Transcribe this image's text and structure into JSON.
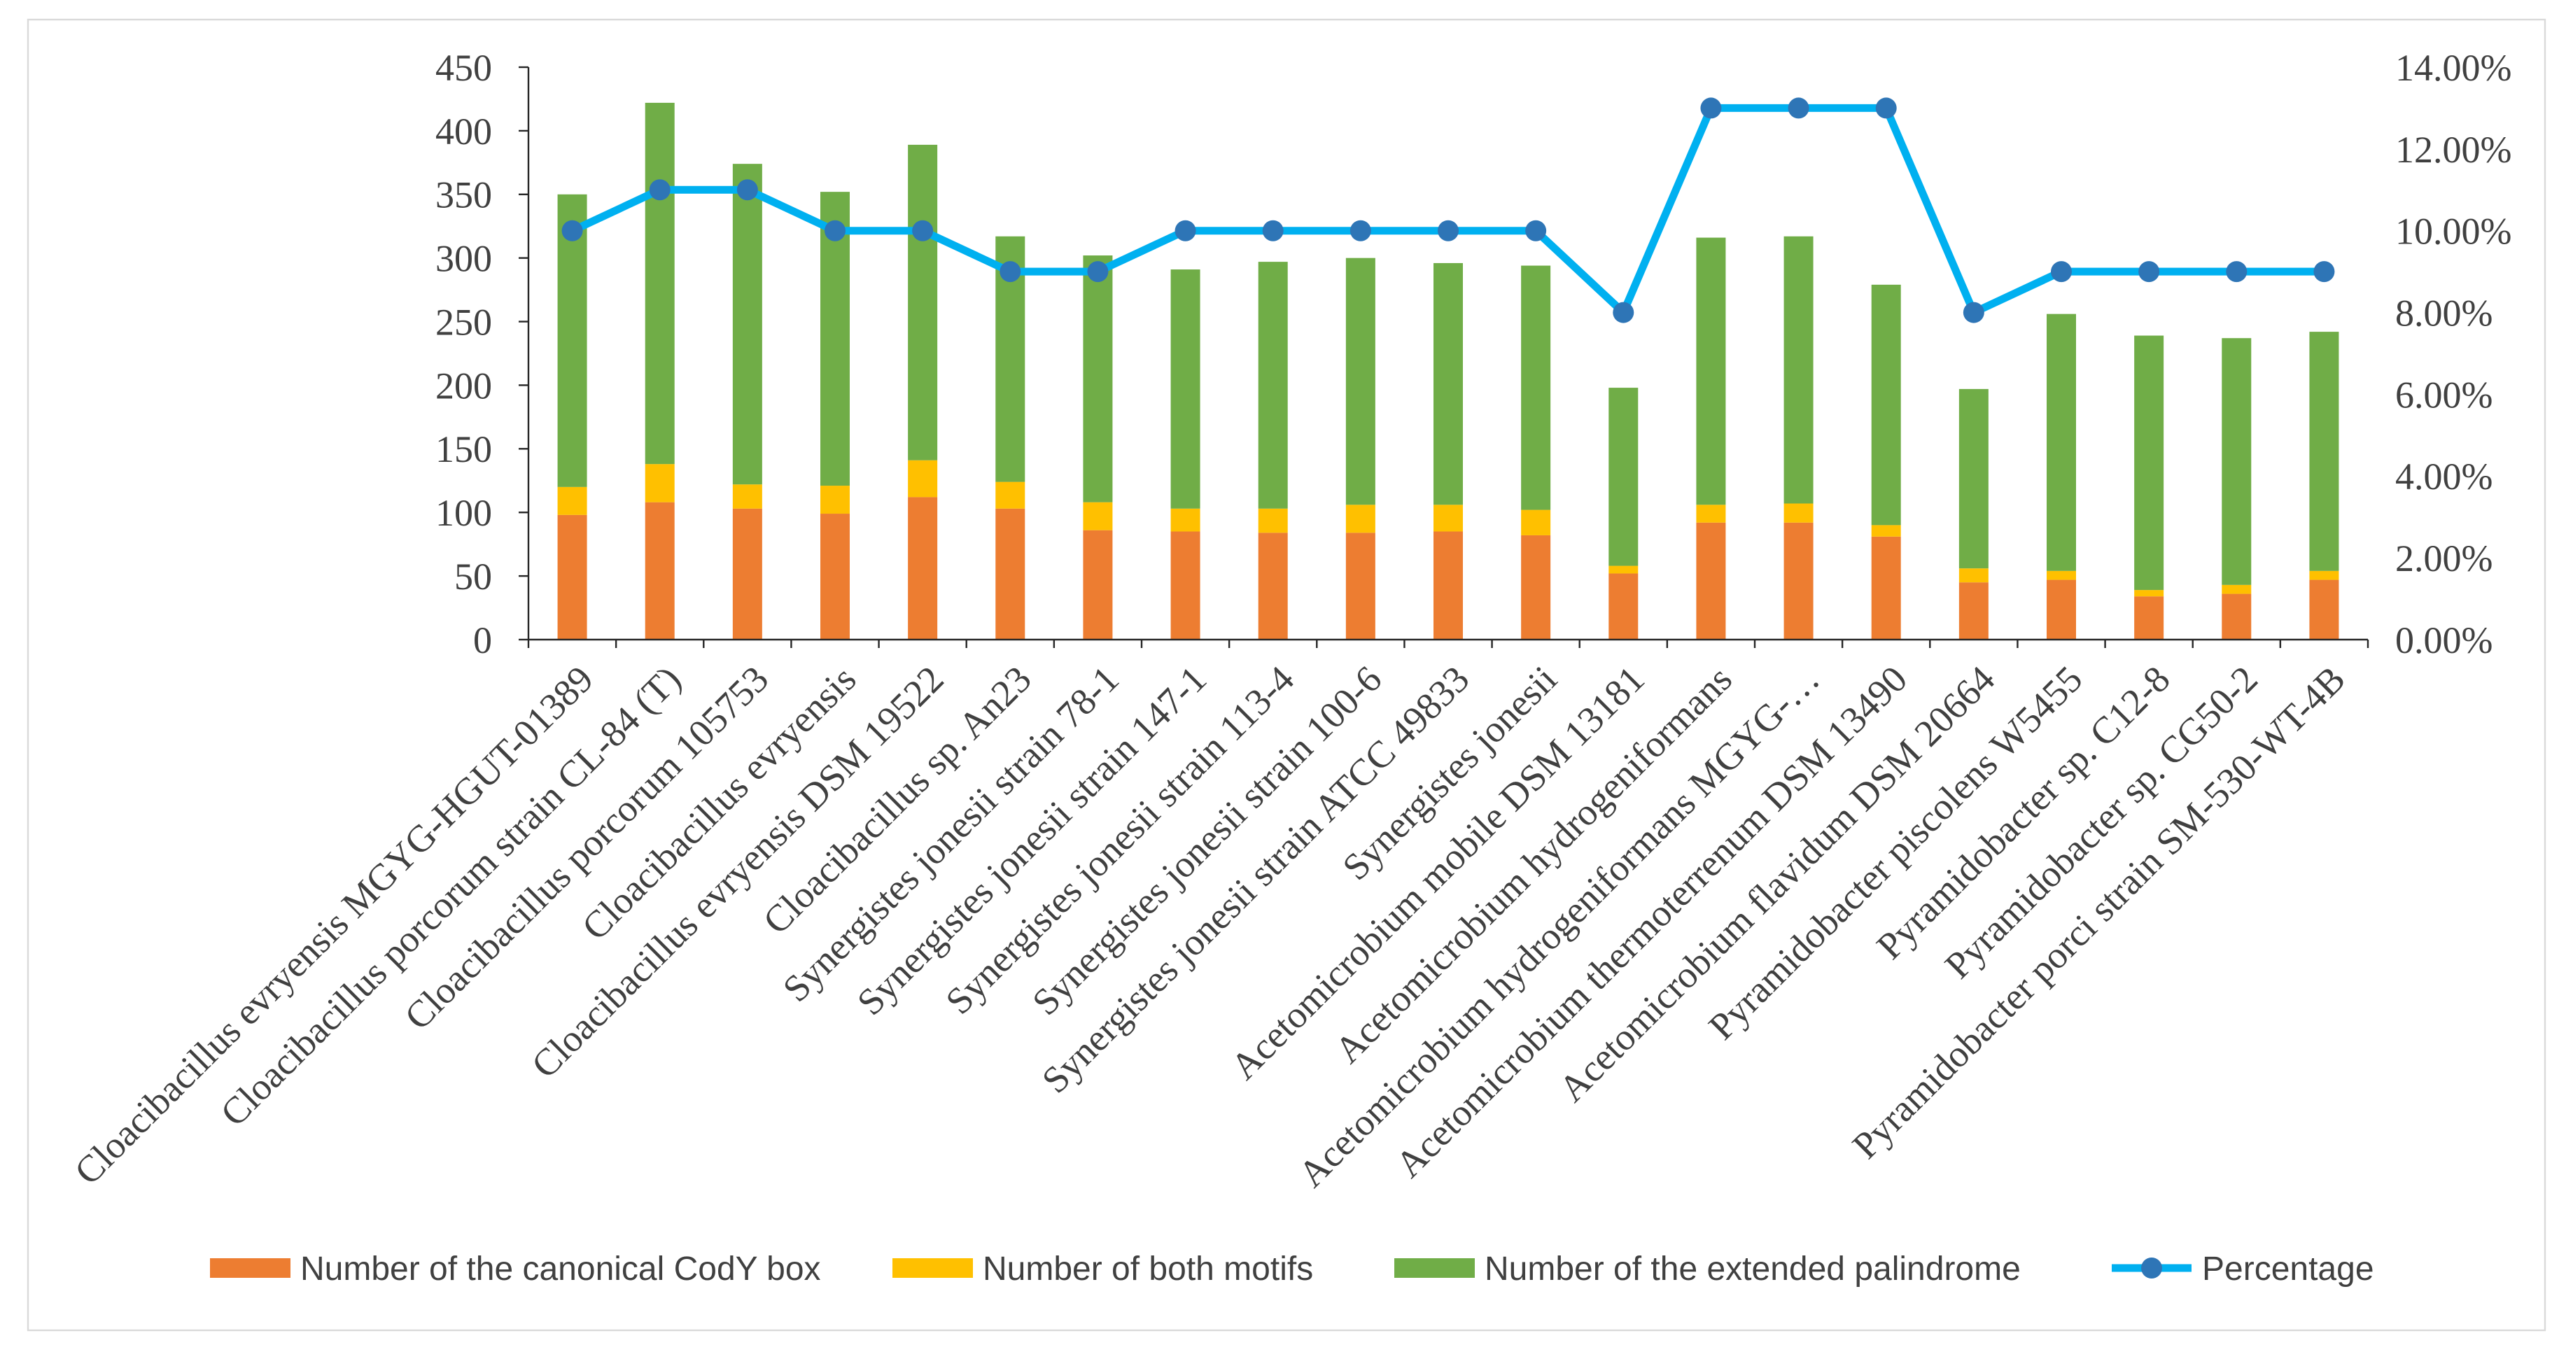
{
  "chart_data": {
    "type": "bar",
    "stacked": true,
    "categories": [
      "Cloacibacillus evryensis MGYG-HGUT-01389",
      "Cloacibacillus porcorum strain CL-84 (T)",
      "Cloacibacillus porcorum 105753",
      "Cloacibacillus evryensis",
      "Cloacibacillus evryensis DSM 19522",
      "Cloacibacillus sp. An23",
      "Synergistes jonesii strain 78-1",
      "Synergistes jonesii strain 147-1",
      "Synergistes jonesii strain 113-4",
      "Synergistes jonesii strain 100-6",
      "Synergistes jonesii strain ATCC 49833",
      "Synergistes jonesii",
      "Acetomicrobium mobile DSM 13181",
      "Acetomicrobium hydrogeniformans",
      "Acetomicrobium hydrogeniformans MGYG-…",
      "Acetomicrobium thermoterrenum DSM 13490",
      "Acetomicrobium flavidum DSM 20664",
      "Pyramidobacter piscolens W5455",
      "Pyramidobacter sp. C12-8",
      "Pyramidobacter sp. CG50-2",
      "Pyramidobacter porci strain SM-530-WT-4B"
    ],
    "series": [
      {
        "name": "Number of the canonical CodY box",
        "type": "bar",
        "axis": "left",
        "color": "#ED7D31",
        "values": [
          98,
          108,
          103,
          99,
          112,
          103,
          86,
          85,
          84,
          84,
          85,
          82,
          52,
          92,
          92,
          81,
          45,
          47,
          34,
          36,
          47
        ]
      },
      {
        "name": "Number of both motifs",
        "type": "bar",
        "axis": "left",
        "color": "#FFC000",
        "values": [
          22,
          30,
          19,
          22,
          29,
          21,
          22,
          18,
          19,
          22,
          21,
          20,
          6,
          14,
          15,
          9,
          11,
          7,
          5,
          7,
          7
        ]
      },
      {
        "name": "Number of the extended palindrome",
        "type": "bar",
        "axis": "left",
        "color": "#70AD47",
        "values": [
          230,
          284,
          252,
          231,
          248,
          193,
          194,
          188,
          194,
          194,
          190,
          192,
          140,
          210,
          210,
          189,
          141,
          202,
          200,
          194,
          188
        ]
      },
      {
        "name": "Percentage",
        "type": "line",
        "axis": "right",
        "color": "#00B0F0",
        "marker_color": "#2E75B6",
        "values": [
          10,
          11,
          11,
          10,
          10,
          9,
          9,
          10,
          10,
          10,
          10,
          10,
          8,
          13,
          13,
          13,
          8,
          9,
          9,
          9,
          9
        ]
      }
    ],
    "ylim": [
      0,
      450
    ],
    "yticks": [
      "0",
      "50",
      "100",
      "150",
      "200",
      "250",
      "300",
      "350",
      "400",
      "450"
    ],
    "y2lim": [
      0,
      14
    ],
    "y2ticks": [
      "0.00%",
      "2.00%",
      "4.00%",
      "6.00%",
      "8.00%",
      "10.00%",
      "12.00%",
      "14.00%"
    ],
    "grid": false,
    "legend": "bottom"
  }
}
